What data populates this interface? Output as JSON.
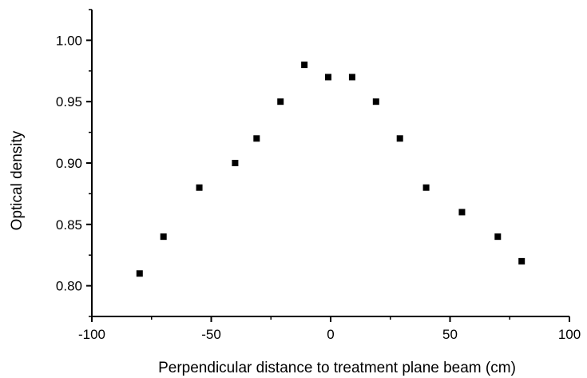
{
  "chart_data": {
    "type": "scatter",
    "title": "",
    "xlabel": "Perpendicular distance to treatment plane beam (cm)",
    "ylabel": "Optical density",
    "xlim": [
      -100,
      100
    ],
    "ylim": [
      0.775,
      1.025
    ],
    "x_ticks": [
      -100,
      -50,
      0,
      50,
      100
    ],
    "x_tick_labels": [
      "-100",
      "-50",
      "0",
      "50",
      "100"
    ],
    "y_ticks": [
      0.8,
      0.85,
      0.9,
      0.95,
      1.0
    ],
    "y_tick_labels": [
      "0.80",
      "0.85",
      "0.90",
      "0.95",
      "1.00"
    ],
    "grid": false,
    "legend": "none",
    "marker": "square",
    "marker_color": "#000000",
    "series": [
      {
        "x": [
          -80,
          -70,
          -55,
          -40,
          -31,
          -21,
          -11,
          -1,
          9,
          19,
          29,
          40,
          55,
          70,
          80
        ],
        "y": [
          0.81,
          0.84,
          0.88,
          0.9,
          0.92,
          0.95,
          0.98,
          0.97,
          0.97,
          0.95,
          0.92,
          0.88,
          0.86,
          0.84,
          0.82
        ]
      }
    ]
  }
}
